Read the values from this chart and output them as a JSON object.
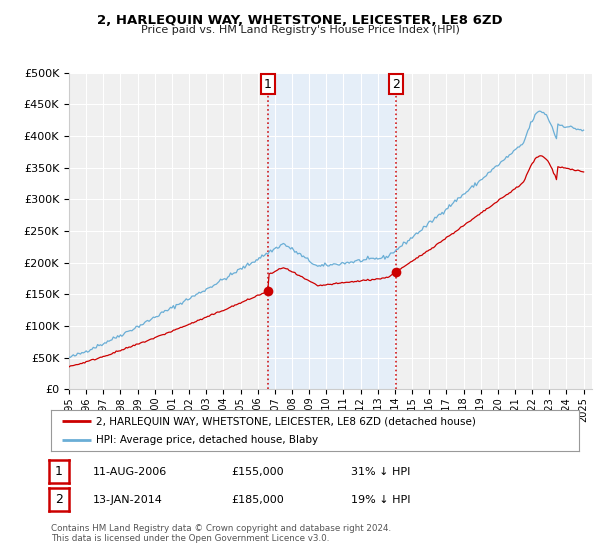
{
  "title": "2, HARLEQUIN WAY, WHETSTONE, LEICESTER, LE8 6ZD",
  "subtitle": "Price paid vs. HM Land Registry's House Price Index (HPI)",
  "ylim": [
    0,
    500000
  ],
  "xlim_start": 1995.0,
  "xlim_end": 2025.5,
  "yticks": [
    0,
    50000,
    100000,
    150000,
    200000,
    250000,
    300000,
    350000,
    400000,
    450000,
    500000
  ],
  "ytick_labels": [
    "£0",
    "£50K",
    "£100K",
    "£150K",
    "£200K",
    "£250K",
    "£300K",
    "£350K",
    "£400K",
    "£450K",
    "£500K"
  ],
  "xtick_years": [
    1995,
    1996,
    1997,
    1998,
    1999,
    2000,
    2001,
    2002,
    2003,
    2004,
    2005,
    2006,
    2007,
    2008,
    2009,
    2010,
    2011,
    2012,
    2013,
    2014,
    2015,
    2016,
    2017,
    2018,
    2019,
    2020,
    2021,
    2022,
    2023,
    2024,
    2025
  ],
  "hpi_color": "#6aaed6",
  "price_color": "#cc0000",
  "shade_color": "#ddeeff",
  "purchase1_x": 2006.6,
  "purchase1_y": 155000,
  "purchase2_x": 2014.05,
  "purchase2_y": 185000,
  "legend_label_red": "2, HARLEQUIN WAY, WHETSTONE, LEICESTER, LE8 6ZD (detached house)",
  "legend_label_blue": "HPI: Average price, detached house, Blaby",
  "table_row1": [
    "1",
    "11-AUG-2006",
    "£155,000",
    "31% ↓ HPI"
  ],
  "table_row2": [
    "2",
    "13-JAN-2014",
    "£185,000",
    "19% ↓ HPI"
  ],
  "footer": "Contains HM Land Registry data © Crown copyright and database right 2024.\nThis data is licensed under the Open Government Licence v3.0.",
  "background_color": "#ffffff",
  "plot_bg_color": "#f0f0f0"
}
